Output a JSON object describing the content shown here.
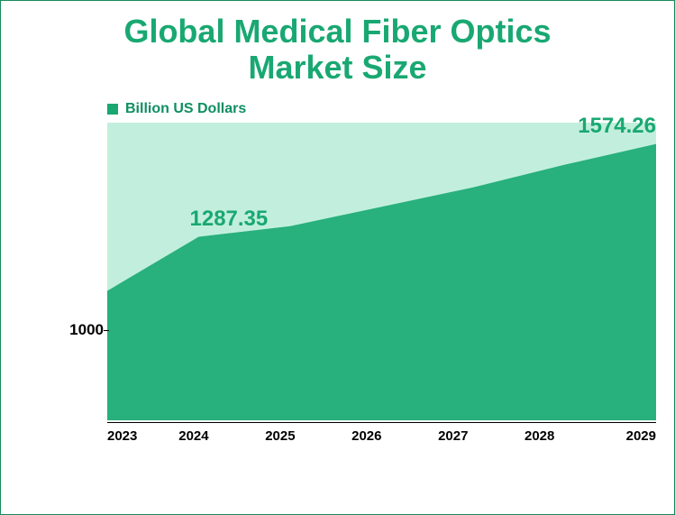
{
  "title": {
    "line1": "Global Medical Fiber Optics",
    "line2": "Market Size",
    "color": "#19a872",
    "fontsize": 36
  },
  "legend": {
    "label": "Billion US Dollars",
    "swatch_color": "#19a872",
    "text_color": "#0f8f62",
    "fontsize": 16
  },
  "chart": {
    "type": "area",
    "categories": [
      "2023",
      "2024",
      "2025",
      "2026",
      "2027",
      "2028",
      "2029"
    ],
    "values": [
      1120,
      1287.35,
      1320,
      1380,
      1440,
      1510,
      1574.26
    ],
    "ylim": [
      720,
      1640
    ],
    "ytick_values": [
      1000
    ],
    "ytick_labels": [
      "1000"
    ],
    "xlabel_fontsize": 15,
    "ylabel_fontsize": 17,
    "area_fill_color": "#28b07d",
    "area_bg_color": "#c2efdd",
    "axis_color": "#000000",
    "background_color": "#ffffff",
    "border_color": "#178a5e",
    "data_labels": [
      {
        "index": 1,
        "text": "1287.35",
        "fontsize": 24
      },
      {
        "index": 6,
        "text": "1574.26",
        "fontsize": 24
      }
    ]
  }
}
